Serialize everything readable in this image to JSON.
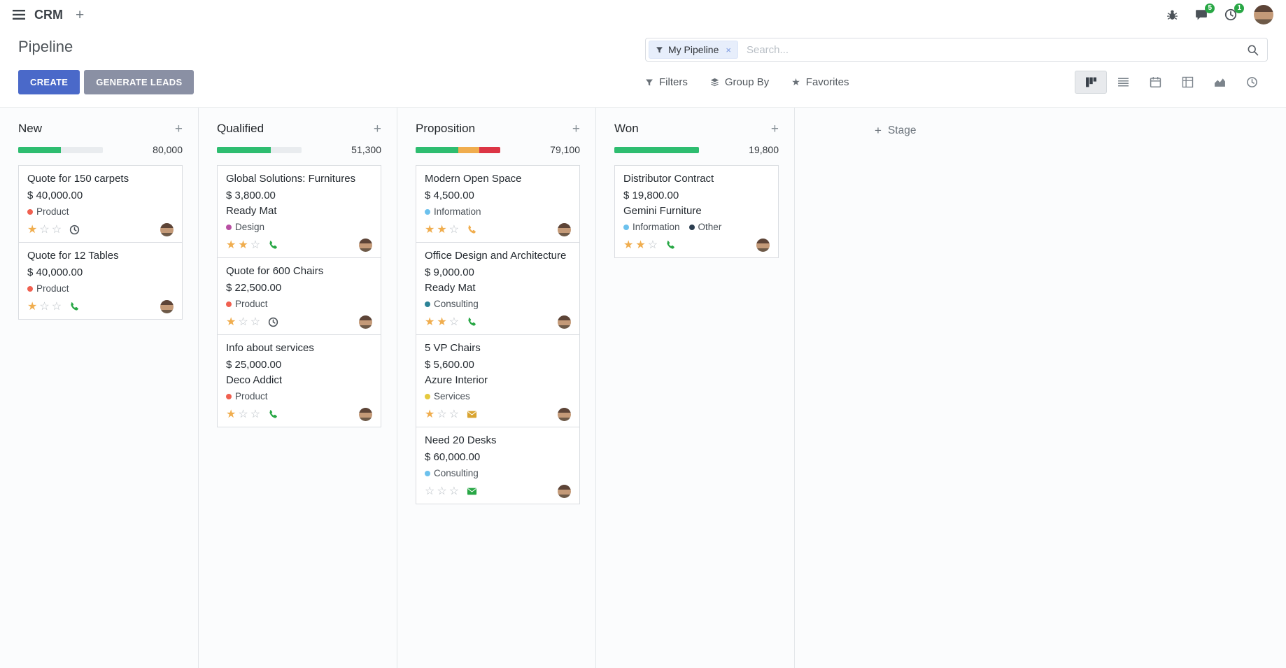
{
  "navbar": {
    "app_name": "CRM",
    "messages_badge": "5",
    "activities_badge": "1"
  },
  "control_panel": {
    "title": "Pipeline",
    "create_label": "CREATE",
    "generate_leads_label": "GENERATE LEADS",
    "filters_label": "Filters",
    "group_by_label": "Group By",
    "favorites_label": "Favorites",
    "search": {
      "facet_label": "My Pipeline",
      "facet_remove": "×",
      "placeholder": "Search..."
    }
  },
  "colors": {
    "primary_button": "#4a69c9",
    "secondary_button": "#8a90a4",
    "badge_green": "#28a745",
    "progress_green": "#2ebd70",
    "progress_yellow": "#f0ad4e",
    "progress_red": "#dc3545",
    "star_active": "#f0ad4e"
  },
  "kanban": {
    "add_stage_label": "Stage",
    "columns": [
      {
        "name": "New",
        "counter": "80,000",
        "progress": [
          {
            "color": "#2ebd70",
            "pct": 50
          }
        ],
        "cards": [
          {
            "title": "Quote for 150 carpets",
            "amount": "$ 40,000.00",
            "company": "",
            "tags": [
              {
                "label": "Product",
                "color": "#f06050"
              }
            ],
            "stars": 1,
            "activity": {
              "icon": "clock",
              "color": "#495057"
            }
          },
          {
            "title": "Quote for 12 Tables",
            "amount": "$ 40,000.00",
            "company": "",
            "tags": [
              {
                "label": "Product",
                "color": "#f06050"
              }
            ],
            "stars": 1,
            "activity": {
              "icon": "phone",
              "color": "#28a745"
            }
          }
        ]
      },
      {
        "name": "Qualified",
        "counter": "51,300",
        "progress": [
          {
            "color": "#2ebd70",
            "pct": 64
          }
        ],
        "cards": [
          {
            "title": "Global Solutions: Furnitures",
            "amount": "$ 3,800.00",
            "company": "Ready Mat",
            "tags": [
              {
                "label": "Design",
                "color": "#b84fa3"
              }
            ],
            "stars": 2,
            "activity": {
              "icon": "phone",
              "color": "#28a745"
            }
          },
          {
            "title": "Quote for 600 Chairs",
            "amount": "$ 22,500.00",
            "company": "",
            "tags": [
              {
                "label": "Product",
                "color": "#f06050"
              }
            ],
            "stars": 1,
            "activity": {
              "icon": "clock",
              "color": "#495057"
            }
          },
          {
            "title": "Info about services",
            "amount": "$ 25,000.00",
            "company": "Deco Addict",
            "tags": [
              {
                "label": "Product",
                "color": "#f06050"
              }
            ],
            "stars": 1,
            "activity": {
              "icon": "phone",
              "color": "#28a745"
            }
          }
        ]
      },
      {
        "name": "Proposition",
        "counter": "79,100",
        "progress": [
          {
            "color": "#2ebd70",
            "pct": 50
          },
          {
            "color": "#f0ad4e",
            "pct": 25
          },
          {
            "color": "#dc3545",
            "pct": 25
          }
        ],
        "cards": [
          {
            "title": "Modern Open Space",
            "amount": "$ 4,500.00",
            "company": "",
            "tags": [
              {
                "label": "Information",
                "color": "#6cc1ed"
              }
            ],
            "stars": 2,
            "activity": {
              "icon": "phone",
              "color": "#f0ad4e"
            }
          },
          {
            "title": "Office Design and Architecture",
            "amount": "$ 9,000.00",
            "company": "Ready Mat",
            "tags": [
              {
                "label": "Consulting",
                "color": "#2c8397"
              }
            ],
            "stars": 2,
            "activity": {
              "icon": "phone",
              "color": "#28a745"
            }
          },
          {
            "title": "5 VP Chairs",
            "amount": "$ 5,600.00",
            "company": "Azure Interior",
            "tags": [
              {
                "label": "Services",
                "color": "#e5c93d"
              }
            ],
            "stars": 1,
            "activity": {
              "icon": "envelope",
              "color": "#d9a430"
            }
          },
          {
            "title": "Need 20 Desks",
            "amount": "$ 60,000.00",
            "company": "",
            "tags": [
              {
                "label": "Consulting",
                "color": "#6cc1ed"
              }
            ],
            "stars": 0,
            "activity": {
              "icon": "envelope",
              "color": "#28a745"
            }
          }
        ]
      },
      {
        "name": "Won",
        "counter": "19,800",
        "progress": [
          {
            "color": "#2ebd70",
            "pct": 100
          }
        ],
        "cards": [
          {
            "title": "Distributor Contract",
            "amount": "$ 19,800.00",
            "company": "Gemini Furniture",
            "tags": [
              {
                "label": "Information",
                "color": "#6cc1ed"
              },
              {
                "label": "Other",
                "color": "#2c3e50"
              }
            ],
            "stars": 2,
            "activity": {
              "icon": "phone",
              "color": "#28a745"
            }
          }
        ]
      }
    ]
  }
}
